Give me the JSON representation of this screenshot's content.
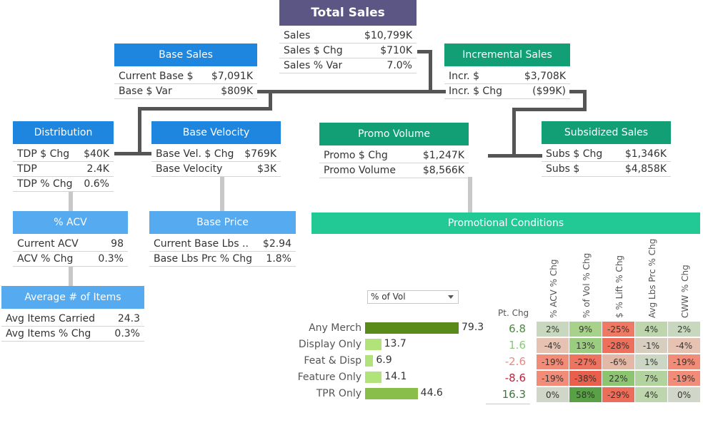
{
  "total_sales": {
    "title": "Total Sales",
    "rows": [
      {
        "label": "Sales",
        "value": "$10,799K"
      },
      {
        "label": "Sales $ Chg",
        "value": "$710K"
      },
      {
        "label": "Sales % Var",
        "value": "7.0%"
      }
    ]
  },
  "base_sales": {
    "title": "Base Sales",
    "rows": [
      {
        "label": "Current Base $",
        "value": "$7,091K"
      },
      {
        "label": "Base $ Var",
        "value": "$809K"
      }
    ]
  },
  "incremental_sales": {
    "title": "Incremental Sales",
    "rows": [
      {
        "label": "Incr. $",
        "value": "$3,708K"
      },
      {
        "label": "Incr. $ Chg",
        "value": "($99K)"
      }
    ]
  },
  "distribution": {
    "title": "Distribution",
    "rows": [
      {
        "label": "TDP $ Chg",
        "value": "$40K"
      },
      {
        "label": "TDP",
        "value": "2.4K"
      },
      {
        "label": "TDP % Chg",
        "value": "0.6%"
      }
    ]
  },
  "base_velocity": {
    "title": "Base Velocity",
    "rows": [
      {
        "label": "Base Vel. $ Chg",
        "value": "$769K"
      },
      {
        "label": "Base Velocity",
        "value": "$3K"
      }
    ]
  },
  "promo_volume": {
    "title": "Promo Volume",
    "rows": [
      {
        "label": "Promo $ Chg",
        "value": "$1,247K"
      },
      {
        "label": "Promo Volume",
        "value": "$8,566K"
      }
    ]
  },
  "subsidized_sales": {
    "title": "Subsidized Sales",
    "rows": [
      {
        "label": "Subs $ Chg",
        "value": "$1,346K"
      },
      {
        "label": "Subs $",
        "value": "$4,858K"
      }
    ]
  },
  "acv": {
    "title": "% ACV",
    "rows": [
      {
        "label": "Current ACV",
        "value": "98"
      },
      {
        "label": "ACV % Chg",
        "value": "0.3%"
      }
    ]
  },
  "base_price": {
    "title": "Base Price",
    "rows": [
      {
        "label": "Current Base Lbs ..",
        "value": "$2.94"
      },
      {
        "label": "Base Lbs Prc % Chg",
        "value": "1.8%"
      }
    ]
  },
  "avg_items": {
    "title": "Average # of Items",
    "rows": [
      {
        "label": "Avg Items Carried",
        "value": "24.3"
      },
      {
        "label": "Avg Items % Chg",
        "value": "0.3%"
      }
    ]
  },
  "promo_conditions": {
    "title": "Promotional Conditions",
    "dropdown_value": "% of Vol",
    "pt_chg_header": "Pt. Chg",
    "columns": [
      "% ACV % Chg",
      "% of Vol % Chg",
      "$ % Lift % Chg",
      "Avg Lbs Prc % Chg",
      "CWW % Chg"
    ],
    "rows": [
      {
        "label": "Any Merch",
        "value": "79.3",
        "bar": 79.3,
        "bar_color": "#5a8a1a",
        "pt": "6.8",
        "pt_color": "#4a8a3a",
        "cells": [
          {
            "v": "2%",
            "c": "#c8d8be"
          },
          {
            "v": "9%",
            "c": "#a8d28c"
          },
          {
            "v": "-25%",
            "c": "#ee7a66"
          },
          {
            "v": "4%",
            "c": "#bed6ae"
          },
          {
            "v": "2%",
            "c": "#c8d8be"
          }
        ]
      },
      {
        "label": "Display Only",
        "value": "13.7",
        "bar": 13.7,
        "bar_color": "#b2e27a",
        "pt": "1.6",
        "pt_color": "#8ac87a",
        "cells": [
          {
            "v": "-4%",
            "c": "#e6c2b2"
          },
          {
            "v": "13%",
            "c": "#9ccc80"
          },
          {
            "v": "-28%",
            "c": "#ec705c"
          },
          {
            "v": "-1%",
            "c": "#d8cec0"
          },
          {
            "v": "-4%",
            "c": "#e6c2b2"
          }
        ]
      },
      {
        "label": "Feat & Disp",
        "value": "6.9",
        "bar": 6.9,
        "bar_color": "#b2e27a",
        "pt": "-2.6",
        "pt_color": "#e88a80",
        "cells": [
          {
            "v": "-19%",
            "c": "#f08c78"
          },
          {
            "v": "-27%",
            "c": "#ec7460"
          },
          {
            "v": "-6%",
            "c": "#e4b8a6"
          },
          {
            "v": "1%",
            "c": "#ccd6c4"
          },
          {
            "v": "-19%",
            "c": "#f08c78"
          }
        ]
      },
      {
        "label": "Feature Only",
        "value": "14.1",
        "bar": 14.1,
        "bar_color": "#b2e27a",
        "pt": "-8.6",
        "pt_color": "#b8243a",
        "cells": [
          {
            "v": "-19%",
            "c": "#f08c78"
          },
          {
            "v": "-38%",
            "c": "#e8604c"
          },
          {
            "v": "22%",
            "c": "#8cc470"
          },
          {
            "v": "7%",
            "c": "#b2d29e"
          },
          {
            "v": "-19%",
            "c": "#f08c78"
          }
        ]
      },
      {
        "label": "TPR Only",
        "value": "44.6",
        "bar": 44.6,
        "bar_color": "#8abe4a",
        "pt": "16.3",
        "pt_color": "#3a7a3a",
        "cells": [
          {
            "v": "0%",
            "c": "#d0d6c8"
          },
          {
            "v": "58%",
            "c": "#5aa046"
          },
          {
            "v": "-29%",
            "c": "#ec6e5a"
          },
          {
            "v": "4%",
            "c": "#bed6ae"
          },
          {
            "v": "0%",
            "c": "#d0d6c8"
          }
        ]
      }
    ]
  },
  "colors": {
    "total": "#5b5684",
    "blue": "#1f86e0",
    "light_blue": "#55aaf0",
    "green": "#129f76",
    "teal": "#22c994"
  }
}
